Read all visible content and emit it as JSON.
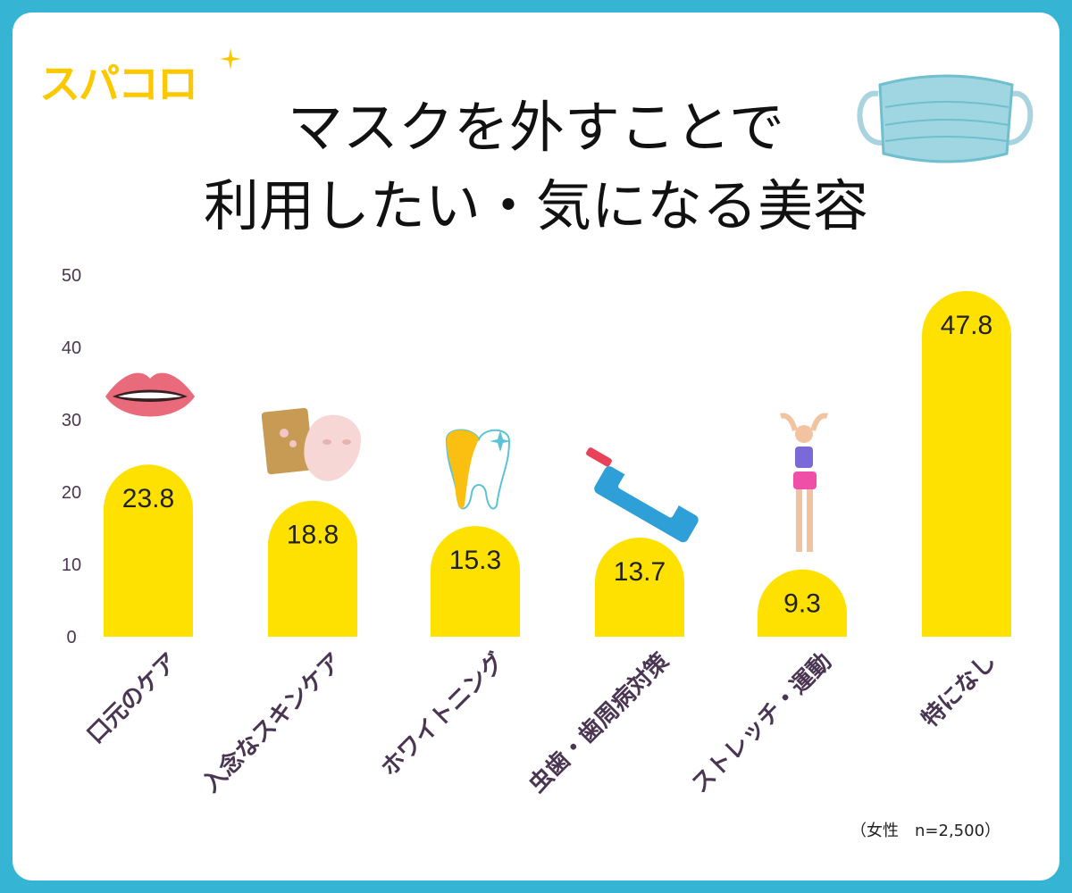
{
  "logo_text": "スパコロ",
  "title_line1": "マスクを外すことで",
  "title_line2": "利用したい・気になる美容",
  "note": "（女性　n=2,500）",
  "colors": {
    "frame": "#35b4d3",
    "bar": "#ffe100",
    "axis_text": "#4a3552",
    "logo": "#fcc800"
  },
  "chart_data": {
    "type": "bar",
    "categories": [
      "口元のケア",
      "入念なスキンケア",
      "ホワイトニング",
      "虫歯・歯周病対策",
      "ストレッチ・運動",
      "特になし"
    ],
    "values": [
      23.8,
      18.8,
      15.3,
      13.7,
      9.3,
      47.8
    ],
    "value_labels": [
      "23.8",
      "18.8",
      "15.3",
      "13.7",
      "9.3",
      "47.8"
    ],
    "yticks": [
      "0",
      "10",
      "20",
      "30",
      "40",
      "50"
    ],
    "ylim": [
      0,
      50
    ],
    "grid": false,
    "icons": [
      "lips-icon",
      "face-mask-icon",
      "tooth-icon",
      "toothpaste-icon",
      "stretching-woman-icon",
      "face-mask-icon"
    ]
  }
}
